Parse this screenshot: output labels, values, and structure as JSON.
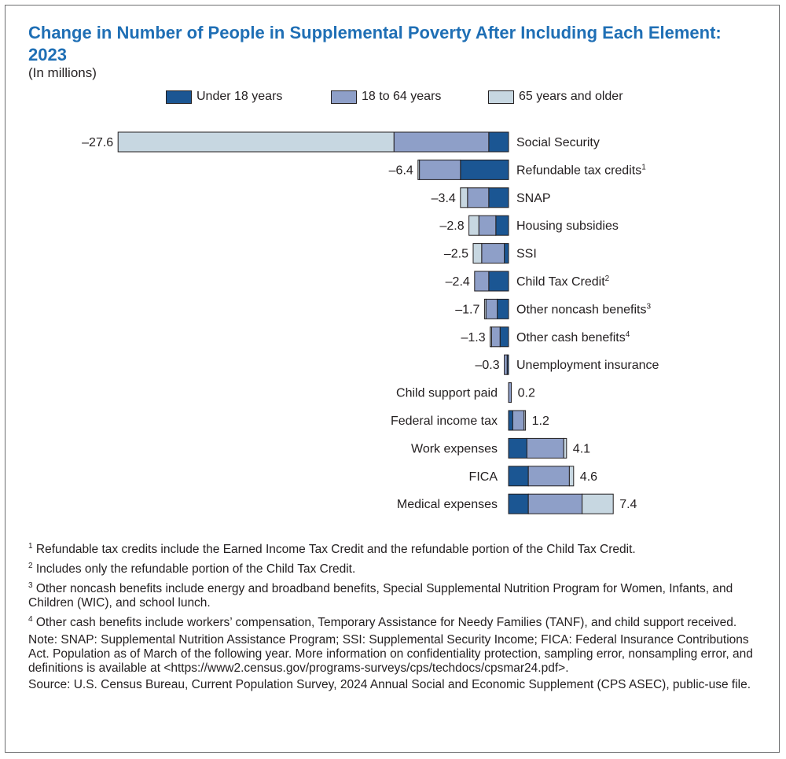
{
  "title": "Change in Number of People in Supplemental Poverty After Including Each Element: 2023",
  "subtitle": "(In millions)",
  "colors": {
    "under18": "#1b5693",
    "age18to64": "#8e9fc8",
    "age65plus": "#c7d7e1",
    "title": "#1f6fb5"
  },
  "chart_data": {
    "type": "bar",
    "orientation": "horizontal-stacked",
    "title": "Change in Number of People in Supplemental Poverty After Including Each Element: 2023",
    "unit": "(In millions)",
    "legend_position": "top",
    "grid": false,
    "categories": [
      "Social Security",
      "Refundable tax credits",
      "SNAP",
      "Housing subsidies",
      "SSI",
      "Child Tax Credit",
      "Other noncash benefits",
      "Other cash benefits",
      "Unemployment insurance",
      "Child support paid",
      "Federal income tax",
      "Work expenses",
      "FICA",
      "Medical expenses"
    ],
    "footnote_marks": [
      "",
      "1",
      "",
      "",
      "",
      "2",
      "3",
      "4",
      "",
      "",
      "",
      "",
      "",
      ""
    ],
    "totals": [
      -27.6,
      -6.4,
      -3.4,
      -2.8,
      -2.5,
      -2.4,
      -1.7,
      -1.3,
      -0.3,
      0.2,
      1.2,
      4.1,
      4.6,
      7.4
    ],
    "total_labels": [
      "–27.6",
      "–6.4",
      "–3.4",
      "–2.8",
      "–2.5",
      "–2.4",
      "–1.7",
      "–1.3",
      "–0.3",
      "0.2",
      "1.2",
      "4.1",
      "4.6",
      "7.4"
    ],
    "series": [
      {
        "name": "Under 18 years",
        "values": [
          -1.4,
          -3.4,
          -1.4,
          -0.9,
          -0.3,
          -1.4,
          -0.8,
          -0.6,
          -0.1,
          0.0,
          0.3,
          1.3,
          1.4,
          1.4
        ]
      },
      {
        "name": "18 to 64 years",
        "values": [
          -6.7,
          -2.9,
          -1.5,
          -1.2,
          -1.6,
          -1.0,
          -0.8,
          -0.6,
          -0.2,
          0.2,
          0.8,
          2.6,
          2.9,
          3.8
        ]
      },
      {
        "name": "65 years and older",
        "values": [
          -19.5,
          -0.1,
          -0.5,
          -0.7,
          -0.6,
          0.0,
          -0.1,
          -0.1,
          0.0,
          0.0,
          0.1,
          0.2,
          0.3,
          2.2
        ]
      }
    ],
    "xlim": [
      -27.6,
      7.4
    ]
  },
  "notes": [
    {
      "mark": "1",
      "text": "Refundable tax credits include the Earned Income Tax Credit and the refundable portion of the Child Tax Credit."
    },
    {
      "mark": "2",
      "text": "Includes only the refundable portion of the Child Tax Credit."
    },
    {
      "mark": "3",
      "text": "Other noncash benefits include energy and broadband benefits, Special Supplemental Nutrition Program for Women, Infants, and Children (WIC), and school lunch."
    },
    {
      "mark": "4",
      "text": "Other cash benefits include workers’ compensation, Temporary Assistance for Needy Families (TANF), and child support received."
    },
    {
      "mark": "",
      "text": "Note: SNAP: Supplemental Nutrition Assistance Program; SSI: Supplemental Security Income; FICA: Federal Insurance Contributions Act. Population as of March of the following year. More information on confidentiality protection, sampling error, nonsampling error, and definitions is available at <https://www2.census.gov/programs-surveys/cps/techdocs/cpsmar24.pdf>."
    },
    {
      "mark": "",
      "text": "Source: U.S. Census Bureau, Current Population Survey, 2024 Annual Social and Economic Supplement (CPS ASEC), public-use file."
    }
  ]
}
